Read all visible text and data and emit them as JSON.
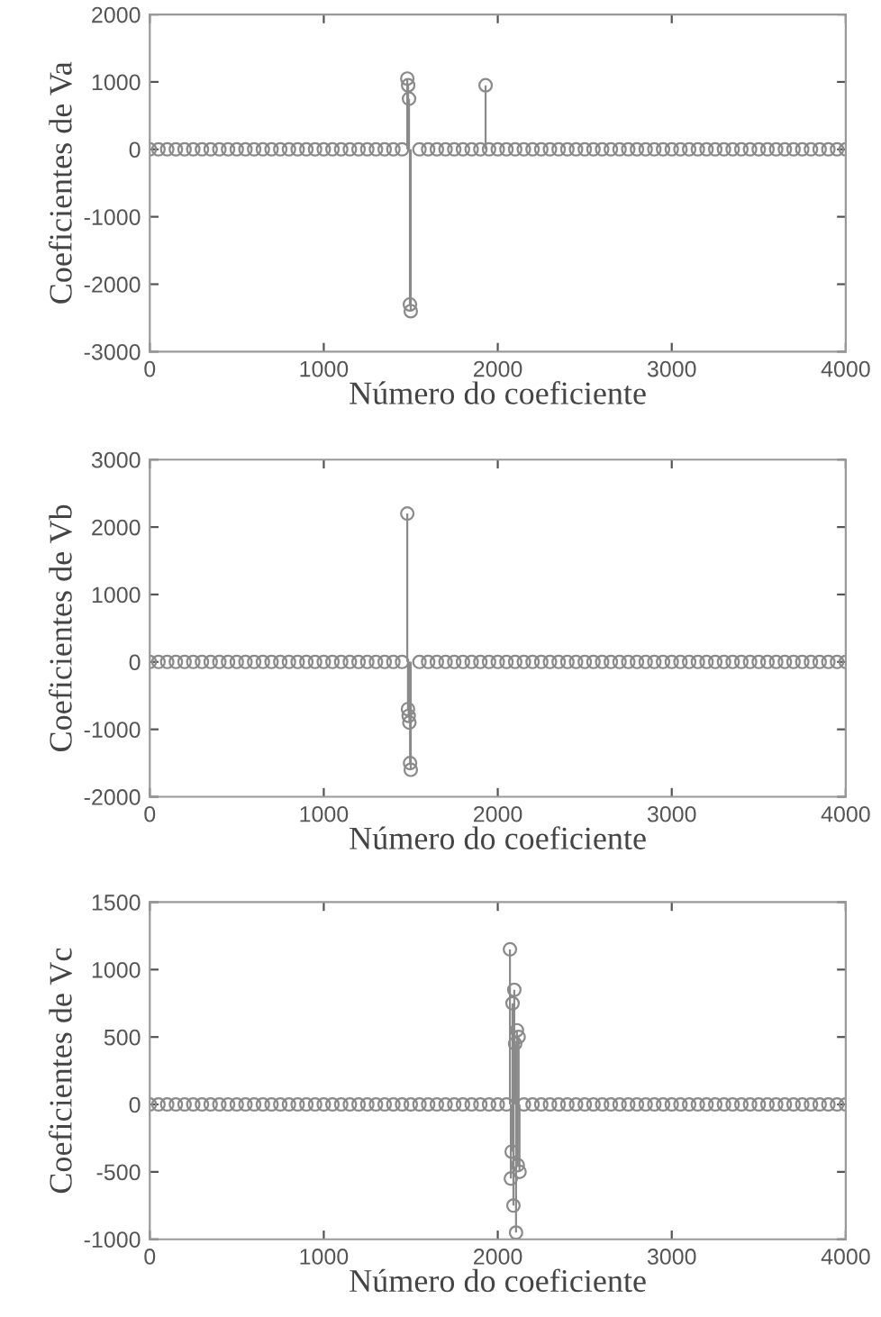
{
  "chart_data": [
    {
      "type": "lollipop",
      "ylabel": "Coeficientes de Va",
      "xlabel": "Número do coeficiente",
      "xlim": [
        0,
        4000
      ],
      "xticks": [
        0,
        1000,
        2000,
        3000,
        4000
      ],
      "ylim": [
        -3000,
        2000
      ],
      "yticks": [
        -3000,
        -2000,
        -1000,
        0,
        1000,
        2000
      ],
      "marker": "circle",
      "grid": false,
      "series": [
        {
          "color": "#8a8a8a",
          "x": [
            0,
            50,
            100,
            150,
            200,
            250,
            300,
            350,
            400,
            450,
            500,
            550,
            600,
            650,
            700,
            750,
            800,
            850,
            900,
            950,
            1000,
            1050,
            1100,
            1150,
            1200,
            1250,
            1300,
            1350,
            1400,
            1450,
            1480,
            1485,
            1490,
            1495,
            1500,
            1550,
            1600,
            1650,
            1700,
            1750,
            1800,
            1850,
            1900,
            1930,
            1950,
            2000,
            2050,
            2100,
            2150,
            2200,
            2250,
            2300,
            2350,
            2400,
            2450,
            2500,
            2550,
            2600,
            2650,
            2700,
            2750,
            2800,
            2850,
            2900,
            2950,
            3000,
            3050,
            3100,
            3150,
            3200,
            3250,
            3300,
            3350,
            3400,
            3450,
            3500,
            3550,
            3600,
            3650,
            3700,
            3750,
            3800,
            3850,
            3900,
            3950,
            4000
          ],
          "values": [
            0,
            0,
            0,
            0,
            0,
            0,
            0,
            0,
            0,
            0,
            0,
            0,
            0,
            0,
            0,
            0,
            0,
            0,
            0,
            0,
            0,
            0,
            0,
            0,
            0,
            0,
            0,
            0,
            0,
            0,
            1050,
            950,
            750,
            -2300,
            -2400,
            0,
            0,
            0,
            0,
            0,
            0,
            0,
            0,
            950,
            0,
            0,
            0,
            0,
            0,
            0,
            0,
            0,
            0,
            0,
            0,
            0,
            0,
            0,
            0,
            0,
            0,
            0,
            0,
            0,
            0,
            0,
            0,
            0,
            0,
            0,
            0,
            0,
            0,
            0,
            0,
            0,
            0,
            0,
            0,
            0,
            0,
            0,
            0,
            0,
            0,
            0
          ]
        }
      ]
    },
    {
      "type": "lollipop",
      "ylabel": "Coeficientes de Vb",
      "xlabel": "Número do coeficiente",
      "xlim": [
        0,
        4000
      ],
      "xticks": [
        0,
        1000,
        2000,
        3000,
        4000
      ],
      "ylim": [
        -2000,
        3000
      ],
      "yticks": [
        -2000,
        -1000,
        0,
        1000,
        2000,
        3000
      ],
      "marker": "circle",
      "grid": false,
      "series": [
        {
          "color": "#8a8a8a",
          "x": [
            0,
            50,
            100,
            150,
            200,
            250,
            300,
            350,
            400,
            450,
            500,
            550,
            600,
            650,
            700,
            750,
            800,
            850,
            900,
            950,
            1000,
            1050,
            1100,
            1150,
            1200,
            1250,
            1300,
            1350,
            1400,
            1450,
            1480,
            1484,
            1488,
            1492,
            1496,
            1500,
            1550,
            1600,
            1650,
            1700,
            1750,
            1800,
            1850,
            1900,
            1950,
            2000,
            2050,
            2100,
            2150,
            2200,
            2250,
            2300,
            2350,
            2400,
            2450,
            2500,
            2550,
            2600,
            2650,
            2700,
            2750,
            2800,
            2850,
            2900,
            2950,
            3000,
            3050,
            3100,
            3150,
            3200,
            3250,
            3300,
            3350,
            3400,
            3450,
            3500,
            3550,
            3600,
            3650,
            3700,
            3750,
            3800,
            3850,
            3900,
            3950,
            4000
          ],
          "values": [
            0,
            0,
            0,
            0,
            0,
            0,
            0,
            0,
            0,
            0,
            0,
            0,
            0,
            0,
            0,
            0,
            0,
            0,
            0,
            0,
            0,
            0,
            0,
            0,
            0,
            0,
            0,
            0,
            0,
            0,
            2200,
            -700,
            -800,
            -900,
            -1500,
            -1600,
            0,
            0,
            0,
            0,
            0,
            0,
            0,
            0,
            0,
            0,
            0,
            0,
            0,
            0,
            0,
            0,
            0,
            0,
            0,
            0,
            0,
            0,
            0,
            0,
            0,
            0,
            0,
            0,
            0,
            0,
            0,
            0,
            0,
            0,
            0,
            0,
            0,
            0,
            0,
            0,
            0,
            0,
            0,
            0,
            0,
            0,
            0,
            0,
            0,
            0
          ]
        }
      ]
    },
    {
      "type": "lollipop",
      "ylabel": "Coeficientes de Vc",
      "xlabel": "Número do coeficiente",
      "xlim": [
        0,
        4000
      ],
      "xticks": [
        0,
        1000,
        2000,
        3000,
        4000
      ],
      "ylim": [
        -1000,
        1500
      ],
      "yticks": [
        -1000,
        -500,
        0,
        500,
        1000,
        1500
      ],
      "marker": "circle",
      "grid": false,
      "series": [
        {
          "color": "#8a8a8a",
          "x": [
            0,
            50,
            100,
            150,
            200,
            250,
            300,
            350,
            400,
            450,
            500,
            550,
            600,
            650,
            700,
            750,
            800,
            850,
            900,
            950,
            1000,
            1050,
            1100,
            1150,
            1200,
            1250,
            1300,
            1350,
            1400,
            1450,
            1500,
            1550,
            1600,
            1650,
            1700,
            1750,
            1800,
            1850,
            1900,
            1950,
            2000,
            2050,
            2070,
            2075,
            2080,
            2085,
            2090,
            2095,
            2100,
            2105,
            2110,
            2115,
            2120,
            2125,
            2150,
            2200,
            2250,
            2300,
            2350,
            2400,
            2450,
            2500,
            2550,
            2600,
            2650,
            2700,
            2750,
            2800,
            2850,
            2900,
            2950,
            3000,
            3050,
            3100,
            3150,
            3200,
            3250,
            3300,
            3350,
            3400,
            3450,
            3500,
            3550,
            3600,
            3650,
            3700,
            3750,
            3800,
            3850,
            3900,
            3950,
            4000
          ],
          "values": [
            0,
            0,
            0,
            0,
            0,
            0,
            0,
            0,
            0,
            0,
            0,
            0,
            0,
            0,
            0,
            0,
            0,
            0,
            0,
            0,
            0,
            0,
            0,
            0,
            0,
            0,
            0,
            0,
            0,
            0,
            0,
            0,
            0,
            0,
            0,
            0,
            0,
            0,
            0,
            0,
            0,
            0,
            1150,
            -550,
            -350,
            750,
            -750,
            850,
            450,
            -950,
            550,
            -450,
            500,
            -500,
            0,
            0,
            0,
            0,
            0,
            0,
            0,
            0,
            0,
            0,
            0,
            0,
            0,
            0,
            0,
            0,
            0,
            0,
            0,
            0,
            0,
            0,
            0,
            0,
            0,
            0,
            0,
            0,
            0,
            0,
            0,
            0,
            0,
            0,
            0,
            0,
            0,
            0
          ]
        }
      ]
    }
  ]
}
